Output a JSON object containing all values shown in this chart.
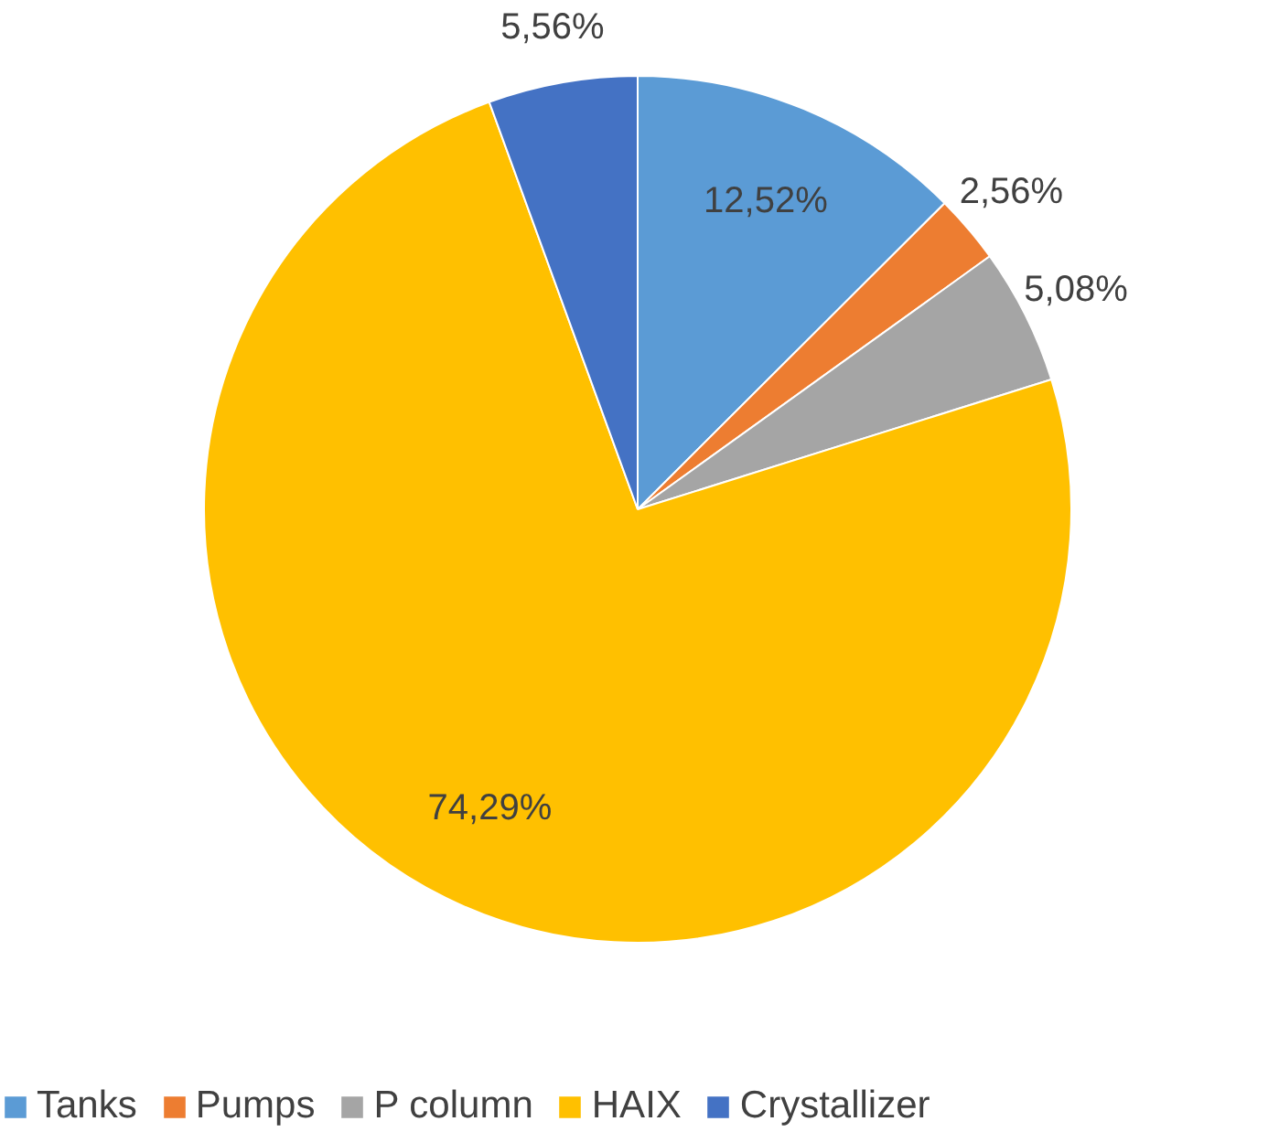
{
  "chart_data": {
    "type": "pie",
    "categories": [
      "Tanks",
      "Pumps",
      "P column",
      "HAIX",
      "Crystallizer"
    ],
    "values": [
      12.52,
      2.56,
      5.08,
      74.29,
      5.56
    ],
    "colors": [
      "#5b9bd5",
      "#ed7d31",
      "#a5a5a5",
      "#ffc000",
      "#4472c4"
    ],
    "value_labels": [
      "12,52%",
      "2,56%",
      "5,08%",
      "74,29%",
      "5,56%"
    ],
    "legend": "bottom"
  }
}
